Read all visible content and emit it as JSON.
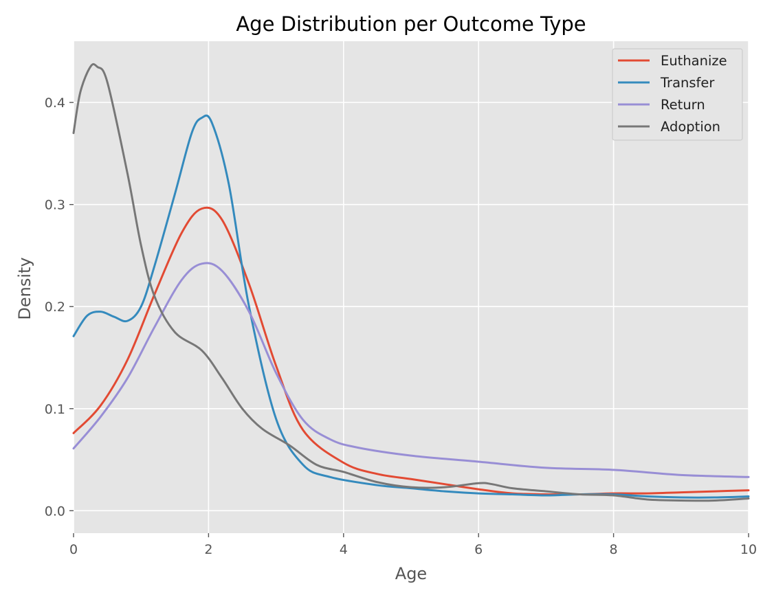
{
  "chart_data": {
    "type": "line",
    "title": "Age Distribution per Outcome Type",
    "xlabel": "Age",
    "ylabel": "Density",
    "xlim": [
      0,
      10
    ],
    "ylim": [
      -0.022,
      0.46
    ],
    "x_ticks": [
      "0",
      "2",
      "4",
      "6",
      "8",
      "10"
    ],
    "y_ticks": [
      "0.0",
      "0.1",
      "0.2",
      "0.3",
      "0.4"
    ],
    "grid": true,
    "legend_position": "top-right",
    "colors": {
      "Euthanize": "#E24A33",
      "Transfer": "#348ABD",
      "Return": "#988ED5",
      "Adoption": "#777777",
      "plot_background": "#E5E5E5"
    },
    "series": [
      {
        "name": "Euthanize",
        "points": [
          [
            0,
            0.076
          ],
          [
            0.4,
            0.103
          ],
          [
            0.8,
            0.148
          ],
          [
            1.2,
            0.212
          ],
          [
            1.6,
            0.272
          ],
          [
            1.9,
            0.296
          ],
          [
            2.2,
            0.285
          ],
          [
            2.6,
            0.222
          ],
          [
            3.0,
            0.142
          ],
          [
            3.4,
            0.079
          ],
          [
            4.0,
            0.047
          ],
          [
            4.5,
            0.036
          ],
          [
            5,
            0.031
          ],
          [
            5.5,
            0.026
          ],
          [
            6,
            0.021
          ],
          [
            6.5,
            0.017
          ],
          [
            7,
            0.016
          ],
          [
            7.5,
            0.016
          ],
          [
            8,
            0.017
          ],
          [
            8.5,
            0.017
          ],
          [
            9,
            0.018
          ],
          [
            9.5,
            0.019
          ],
          [
            10,
            0.02
          ]
        ]
      },
      {
        "name": "Transfer",
        "points": [
          [
            0,
            0.171
          ],
          [
            0.2,
            0.191
          ],
          [
            0.4,
            0.195
          ],
          [
            0.6,
            0.19
          ],
          [
            0.8,
            0.186
          ],
          [
            1.0,
            0.2
          ],
          [
            1.2,
            0.24
          ],
          [
            1.5,
            0.31
          ],
          [
            1.75,
            0.37
          ],
          [
            1.9,
            0.385
          ],
          [
            2.05,
            0.38
          ],
          [
            2.3,
            0.32
          ],
          [
            2.6,
            0.2
          ],
          [
            3.0,
            0.09
          ],
          [
            3.4,
            0.045
          ],
          [
            3.8,
            0.033
          ],
          [
            4.5,
            0.025
          ],
          [
            5,
            0.022
          ],
          [
            5.5,
            0.019
          ],
          [
            6,
            0.017
          ],
          [
            6.5,
            0.016
          ],
          [
            7,
            0.015
          ],
          [
            7.5,
            0.016
          ],
          [
            8,
            0.016
          ],
          [
            8.5,
            0.014
          ],
          [
            9,
            0.013
          ],
          [
            9.5,
            0.013
          ],
          [
            10,
            0.014
          ]
        ]
      },
      {
        "name": "Return",
        "points": [
          [
            0,
            0.061
          ],
          [
            0.4,
            0.092
          ],
          [
            0.8,
            0.13
          ],
          [
            1.2,
            0.18
          ],
          [
            1.6,
            0.226
          ],
          [
            1.9,
            0.242
          ],
          [
            2.2,
            0.235
          ],
          [
            2.6,
            0.195
          ],
          [
            3.0,
            0.135
          ],
          [
            3.4,
            0.089
          ],
          [
            3.8,
            0.07
          ],
          [
            4.2,
            0.062
          ],
          [
            5,
            0.054
          ],
          [
            6,
            0.048
          ],
          [
            7,
            0.042
          ],
          [
            8,
            0.04
          ],
          [
            9,
            0.035
          ],
          [
            10,
            0.033
          ]
        ]
      },
      {
        "name": "Adoption",
        "points": [
          [
            0,
            0.37
          ],
          [
            0.1,
            0.41
          ],
          [
            0.25,
            0.435
          ],
          [
            0.35,
            0.435
          ],
          [
            0.5,
            0.42
          ],
          [
            0.8,
            0.33
          ],
          [
            1.0,
            0.26
          ],
          [
            1.2,
            0.21
          ],
          [
            1.5,
            0.175
          ],
          [
            1.9,
            0.157
          ],
          [
            2.2,
            0.13
          ],
          [
            2.5,
            0.1
          ],
          [
            2.8,
            0.08
          ],
          [
            3.2,
            0.064
          ],
          [
            3.6,
            0.045
          ],
          [
            4.0,
            0.038
          ],
          [
            4.5,
            0.028
          ],
          [
            5,
            0.023
          ],
          [
            5.5,
            0.023
          ],
          [
            6,
            0.027
          ],
          [
            6.2,
            0.026
          ],
          [
            6.5,
            0.022
          ],
          [
            7,
            0.019
          ],
          [
            7.5,
            0.016
          ],
          [
            8,
            0.015
          ],
          [
            8.5,
            0.011
          ],
          [
            9,
            0.01
          ],
          [
            9.5,
            0.01
          ],
          [
            10,
            0.012
          ]
        ]
      }
    ]
  }
}
